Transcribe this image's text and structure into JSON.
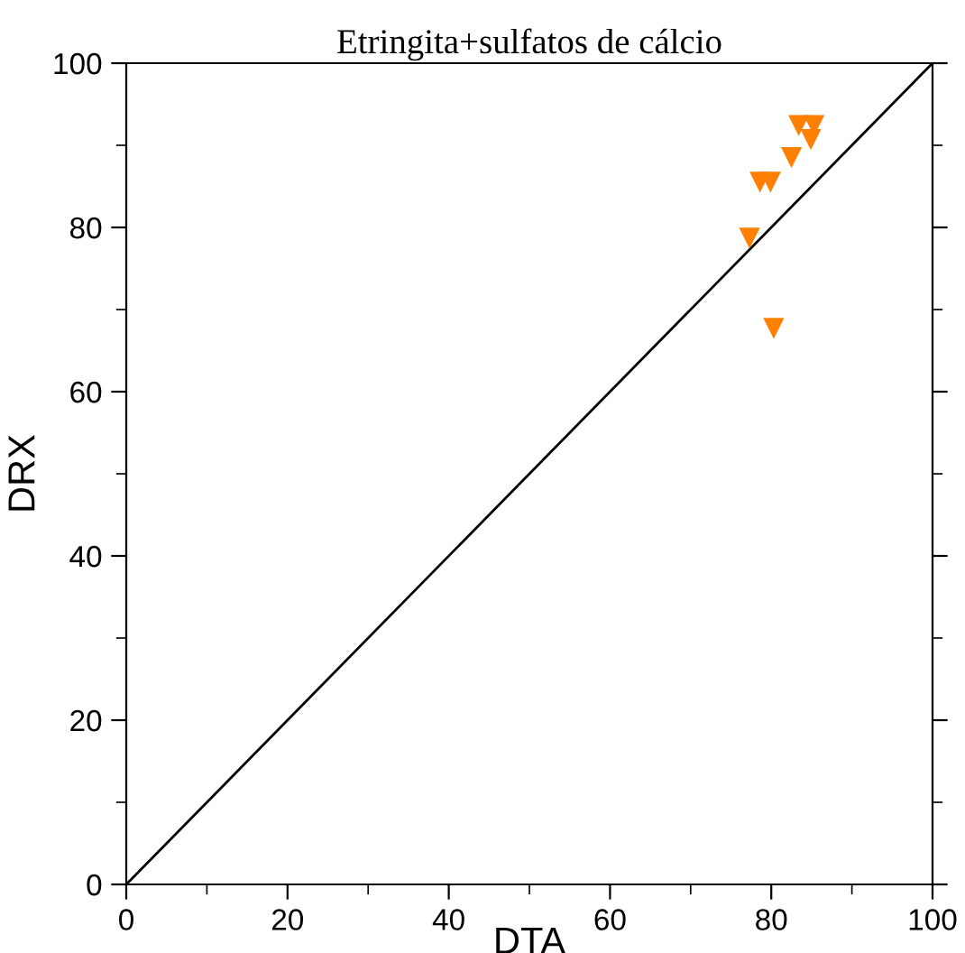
{
  "chart_data": {
    "type": "scatter",
    "title": "Etringita+sulfatos de cálcio",
    "xlabel": "DTA",
    "ylabel": "DRX",
    "xlim": [
      0,
      100
    ],
    "ylim": [
      0,
      100
    ],
    "xticks": [
      0,
      20,
      40,
      60,
      80,
      100
    ],
    "yticks": [
      0,
      20,
      40,
      60,
      80,
      100
    ],
    "grid": false,
    "legend": false,
    "marker": "triangle_down",
    "series": [
      {
        "type": "line",
        "color": "#000000",
        "x": [
          0,
          100
        ],
        "values": [
          0,
          100
        ],
        "marker": "none",
        "line_style": "solid"
      },
      {
        "color": "#ff7f00",
        "x": [
          83.4,
          85.3,
          84.9,
          82.5,
          78.6,
          79.9,
          77.3,
          80.3
        ],
        "values": [
          92.4,
          92.4,
          90.7,
          88.5,
          85.5,
          85.5,
          78.7,
          67.7
        ]
      }
    ]
  }
}
